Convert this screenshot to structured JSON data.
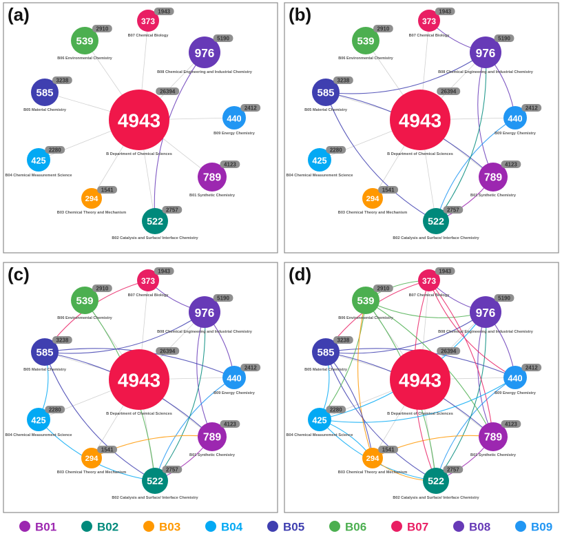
{
  "colors": {
    "B01": "#9c27b0",
    "B02": "#00897b",
    "B03": "#ff9800",
    "B04": "#03a9f4",
    "B05": "#3f3fb0",
    "B06": "#4caf50",
    "B07": "#e91e63",
    "B08": "#673ab7",
    "B09": "#2196f3",
    "B": "#f0174a"
  },
  "nodes": [
    {
      "id": "B",
      "count": "4943",
      "badge": "26394",
      "label": "B Department of Chemical Sciences"
    },
    {
      "id": "B07",
      "count": "373",
      "badge": "1943",
      "label": "B07 Chemical Biology"
    },
    {
      "id": "B06",
      "count": "539",
      "badge": "2910",
      "label": "B06 Environmental Chemistry"
    },
    {
      "id": "B08",
      "count": "976",
      "badge": "5190",
      "label": "B08 Chemical Engineering and Industrial Chemistry"
    },
    {
      "id": "B05",
      "count": "585",
      "badge": "3238",
      "label": "B05 Material Chemistry"
    },
    {
      "id": "B09",
      "count": "440",
      "badge": "2412",
      "label": "B09 Energy Chemistry"
    },
    {
      "id": "B04",
      "count": "425",
      "badge": "2280",
      "label": "B04 Chemical Measurement Science"
    },
    {
      "id": "B01",
      "count": "789",
      "badge": "4123",
      "label": "B01 Synthetic Chemistry"
    },
    {
      "id": "B03",
      "count": "294",
      "badge": "1541",
      "label": "B03 Chemical Theory and Mechanism"
    },
    {
      "id": "B02",
      "count": "522",
      "badge": "2757",
      "label": "B02 Catalysis and Surface/ Interface Chemistry"
    }
  ],
  "panels": [
    {
      "letter": "(a)",
      "edges": [
        [
          "B08",
          "B02"
        ]
      ]
    },
    {
      "letter": "(b)",
      "edges": [
        [
          "B05",
          "B08"
        ],
        [
          "B08",
          "B07"
        ],
        [
          "B08",
          "B01"
        ],
        [
          "B08",
          "B09"
        ],
        [
          "B09",
          "B02"
        ],
        [
          "B01",
          "B02"
        ],
        [
          "B05",
          "B02"
        ],
        [
          "B05",
          "B01"
        ],
        [
          "B02",
          "B08"
        ]
      ]
    },
    {
      "letter": "(c)",
      "edges": [
        [
          "B05",
          "B08"
        ],
        [
          "B08",
          "B07"
        ],
        [
          "B08",
          "B01"
        ],
        [
          "B08",
          "B09"
        ],
        [
          "B09",
          "B02"
        ],
        [
          "B01",
          "B02"
        ],
        [
          "B05",
          "B02"
        ],
        [
          "B05",
          "B01"
        ],
        [
          "B02",
          "B08"
        ],
        [
          "B06",
          "B02"
        ],
        [
          "B07",
          "B05"
        ],
        [
          "B05",
          "B09"
        ],
        [
          "B04",
          "B05"
        ],
        [
          "B03",
          "B01"
        ],
        [
          "B04",
          "B02"
        ]
      ]
    },
    {
      "letter": "(d)",
      "edges": [
        [
          "B05",
          "B08"
        ],
        [
          "B08",
          "B07"
        ],
        [
          "B08",
          "B01"
        ],
        [
          "B08",
          "B09"
        ],
        [
          "B09",
          "B02"
        ],
        [
          "B01",
          "B02"
        ],
        [
          "B05",
          "B02"
        ],
        [
          "B05",
          "B01"
        ],
        [
          "B02",
          "B08"
        ],
        [
          "B06",
          "B02"
        ],
        [
          "B07",
          "B05"
        ],
        [
          "B05",
          "B09"
        ],
        [
          "B04",
          "B05"
        ],
        [
          "B03",
          "B01"
        ],
        [
          "B04",
          "B02"
        ],
        [
          "B06",
          "B07"
        ],
        [
          "B06",
          "B08"
        ],
        [
          "B07",
          "B01"
        ],
        [
          "B07",
          "B02"
        ],
        [
          "B06",
          "B04"
        ],
        [
          "B04",
          "B09"
        ],
        [
          "B04",
          "B03"
        ],
        [
          "B03",
          "B02"
        ],
        [
          "B06",
          "B01"
        ],
        [
          "B07",
          "B09"
        ],
        [
          "B03",
          "B06"
        ],
        [
          "B04",
          "B08"
        ],
        [
          "B05",
          "B03"
        ]
      ]
    }
  ],
  "legend": [
    "B01",
    "B02",
    "B03",
    "B04",
    "B05",
    "B06",
    "B07",
    "B08",
    "B09"
  ]
}
